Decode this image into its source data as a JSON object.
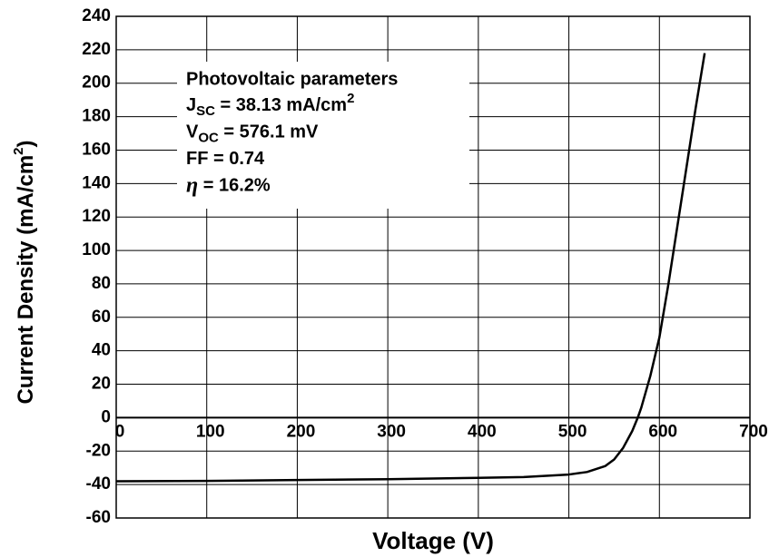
{
  "chart_data": {
    "type": "line",
    "xlabel": "Voltage  (V)",
    "ylabel": [
      "Current Density  (mA/cm",
      "2",
      ")"
    ],
    "x": [
      0,
      100,
      200,
      300,
      400,
      450,
      500,
      520,
      540,
      550,
      560,
      570,
      576.1,
      580,
      590,
      600,
      610,
      620,
      630,
      640,
      650
    ],
    "series": [
      {
        "color": "#000000",
        "values": [
          -38,
          -37.8,
          -37.3,
          -36.8,
          -36,
          -35.5,
          -34,
          -32.5,
          -29,
          -25,
          -18,
          -8,
          0,
          6,
          25,
          48,
          80,
          115,
          150,
          185,
          218
        ]
      }
    ],
    "xlim": [
      0,
      700
    ],
    "xticks": [
      0,
      100,
      200,
      300,
      400,
      500,
      600,
      700
    ],
    "ylim": [
      -60,
      240
    ],
    "yticks": [
      -60,
      -40,
      -20,
      0,
      20,
      40,
      60,
      80,
      100,
      120,
      140,
      160,
      180,
      200,
      220,
      240
    ],
    "grid": true,
    "annotation": {
      "title": "Photovoltaic parameters",
      "lines": [
        [
          "J",
          "SC",
          " = 38.13 mA/cm",
          "2"
        ],
        [
          "V",
          "OC",
          " = 576.1 mV"
        ],
        [
          "FF = 0.74"
        ],
        [
          "η",
          "  = 16.2%"
        ]
      ]
    }
  }
}
